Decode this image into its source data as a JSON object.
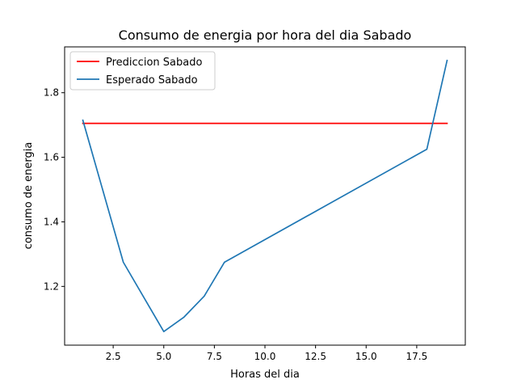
{
  "chart_data": {
    "type": "line",
    "title": "Consumo de energia por hora del dia Sabado",
    "xlabel": "Horas del dia",
    "ylabel": "consumo de energia",
    "xlim": [
      0.1,
      19.9
    ],
    "ylim": [
      1.018,
      1.942
    ],
    "xticks": [
      2.5,
      5.0,
      7.5,
      10.0,
      12.5,
      15.0,
      17.5
    ],
    "xtick_labels": [
      "2.5",
      "5.0",
      "7.5",
      "10.0",
      "12.5",
      "15.0",
      "17.5"
    ],
    "yticks": [
      1.2,
      1.4,
      1.6,
      1.8
    ],
    "ytick_labels": [
      "1.2",
      "1.4",
      "1.6",
      "1.8"
    ],
    "grid": false,
    "legend_position": "upper-left",
    "series": [
      {
        "name": "Prediccion Sabado",
        "color": "#ff0000",
        "x": [
          1,
          19
        ],
        "y": [
          1.705,
          1.705
        ]
      },
      {
        "name": "Esperado Sabado",
        "color": "#1f77b4",
        "x": [
          1,
          3,
          5,
          6,
          7,
          8,
          18,
          19
        ],
        "y": [
          1.715,
          1.275,
          1.06,
          1.105,
          1.17,
          1.275,
          1.625,
          1.9
        ]
      }
    ]
  }
}
